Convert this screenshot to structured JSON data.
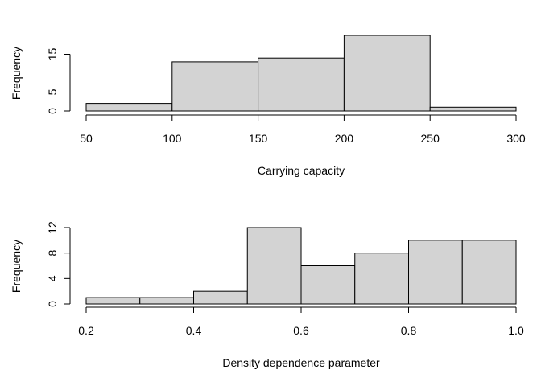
{
  "chart_data": [
    {
      "type": "bar",
      "subtype": "histogram",
      "bins": [
        {
          "from": 50,
          "to": 100,
          "count": 2
        },
        {
          "from": 100,
          "to": 150,
          "count": 13
        },
        {
          "from": 150,
          "to": 200,
          "count": 14
        },
        {
          "from": 200,
          "to": 250,
          "count": 20
        },
        {
          "from": 250,
          "to": 300,
          "count": 1
        }
      ],
      "xlabel": "Carrying capacity",
      "ylabel": "Frequency",
      "xlim": [
        50,
        300
      ],
      "ylim": [
        0,
        20
      ],
      "x_ticks": [
        50,
        100,
        150,
        200,
        250,
        300
      ],
      "x_tick_labels": [
        "50",
        "100",
        "150",
        "200",
        "250",
        "300"
      ],
      "y_ticks": [
        0,
        5,
        15
      ],
      "y_tick_labels": [
        "0",
        "5",
        "15"
      ],
      "grid": false,
      "color": "#d3d3d3"
    },
    {
      "type": "bar",
      "subtype": "histogram",
      "bins": [
        {
          "from": 0.2,
          "to": 0.3,
          "count": 1
        },
        {
          "from": 0.3,
          "to": 0.4,
          "count": 1
        },
        {
          "from": 0.4,
          "to": 0.5,
          "count": 2
        },
        {
          "from": 0.5,
          "to": 0.6,
          "count": 12
        },
        {
          "from": 0.6,
          "to": 0.7,
          "count": 6
        },
        {
          "from": 0.7,
          "to": 0.8,
          "count": 8
        },
        {
          "from": 0.8,
          "to": 0.9,
          "count": 10
        },
        {
          "from": 0.9,
          "to": 1.0,
          "count": 10
        }
      ],
      "xlabel": "Density dependence parameter",
      "ylabel": "Frequency",
      "xlim": [
        0.2,
        1.0
      ],
      "ylim": [
        0,
        12
      ],
      "x_ticks": [
        0.2,
        0.4,
        0.6,
        0.8,
        1.0
      ],
      "x_tick_labels": [
        "0.2",
        "0.4",
        "0.6",
        "0.8",
        "1.0"
      ],
      "y_ticks": [
        0,
        4,
        8,
        12
      ],
      "y_tick_labels": [
        "0",
        "4",
        "8",
        "12"
      ],
      "grid": false,
      "color": "#d3d3d3"
    }
  ]
}
